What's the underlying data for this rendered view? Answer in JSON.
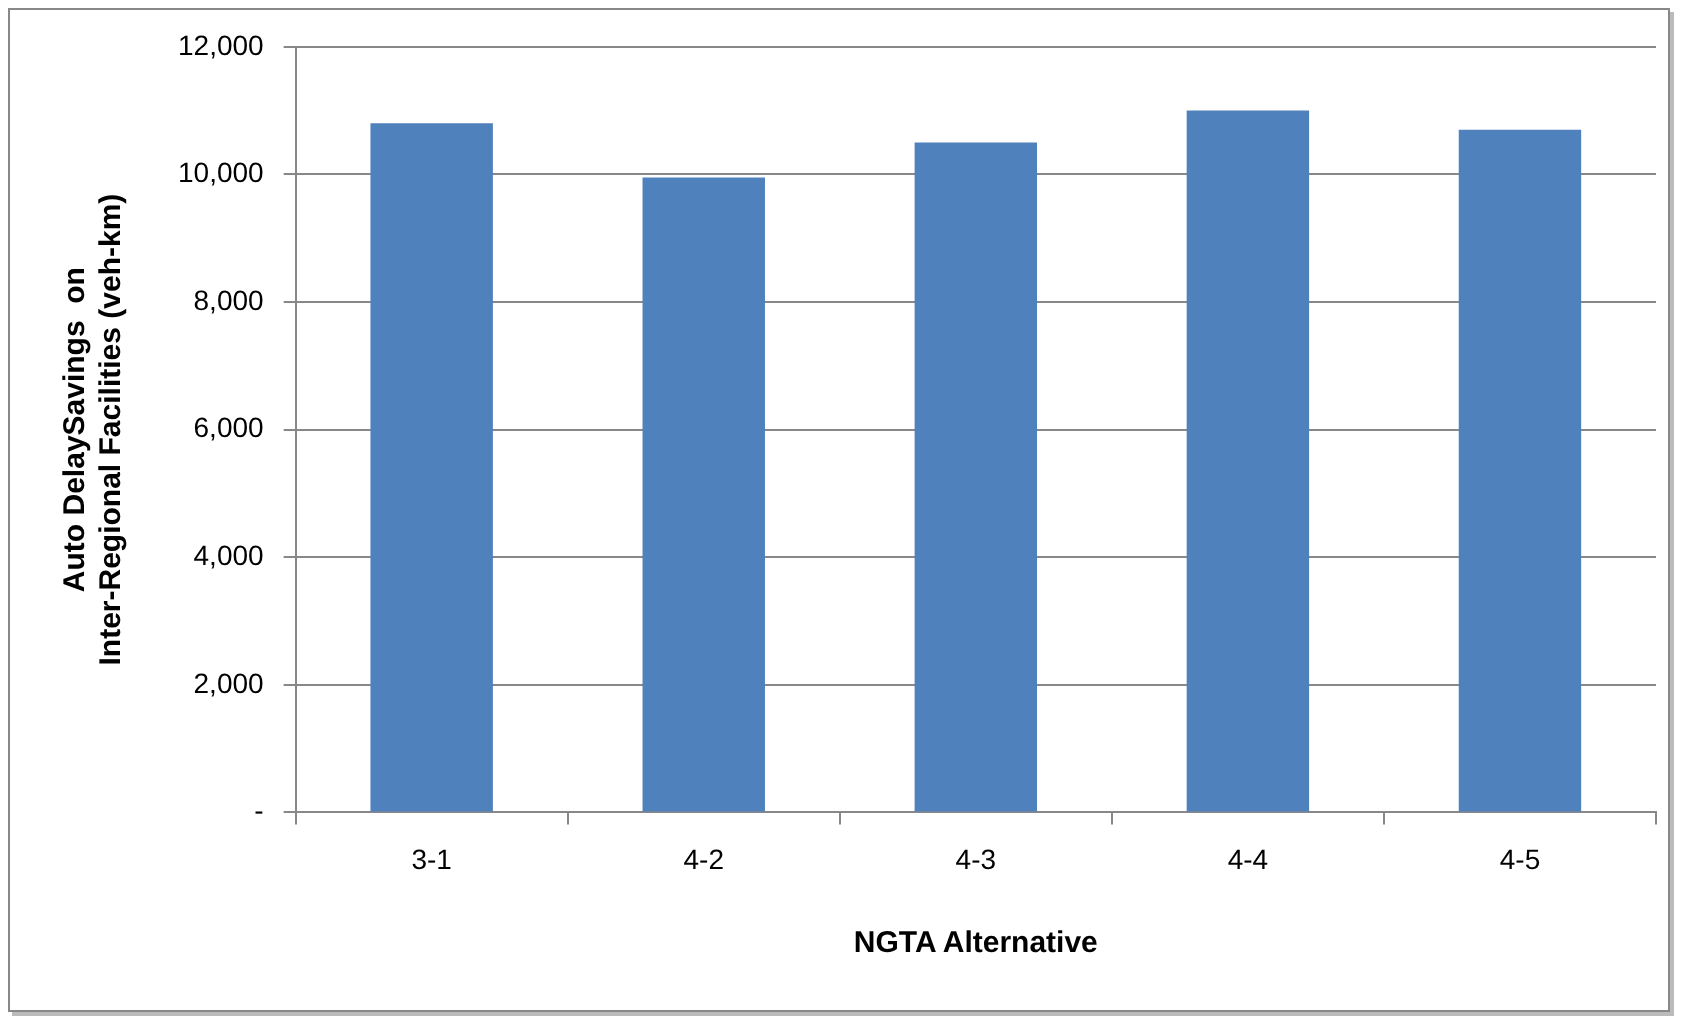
{
  "chart_data": {
    "type": "bar",
    "xlabel": "NGTA Alternative",
    "ylabel": "Auto DelaySavings  on\nInter-Regional Facilities (veh-km)",
    "categories": [
      "3-1",
      "4-2",
      "4-3",
      "4-4",
      "4-5"
    ],
    "values": [
      10800,
      9950,
      10500,
      11000,
      10700
    ],
    "color": "#4f81bd",
    "ylim": [
      0,
      12000
    ],
    "yticks": [
      {
        "value": 0,
        "label": "-"
      },
      {
        "value": 2000,
        "label": "2,000"
      },
      {
        "value": 4000,
        "label": "4,000"
      },
      {
        "value": 6000,
        "label": "6,000"
      },
      {
        "value": 8000,
        "label": "8,000"
      },
      {
        "value": 10000,
        "label": "10,000"
      },
      {
        "value": 12000,
        "label": "12,000"
      }
    ],
    "grid": "y",
    "legend": false
  }
}
